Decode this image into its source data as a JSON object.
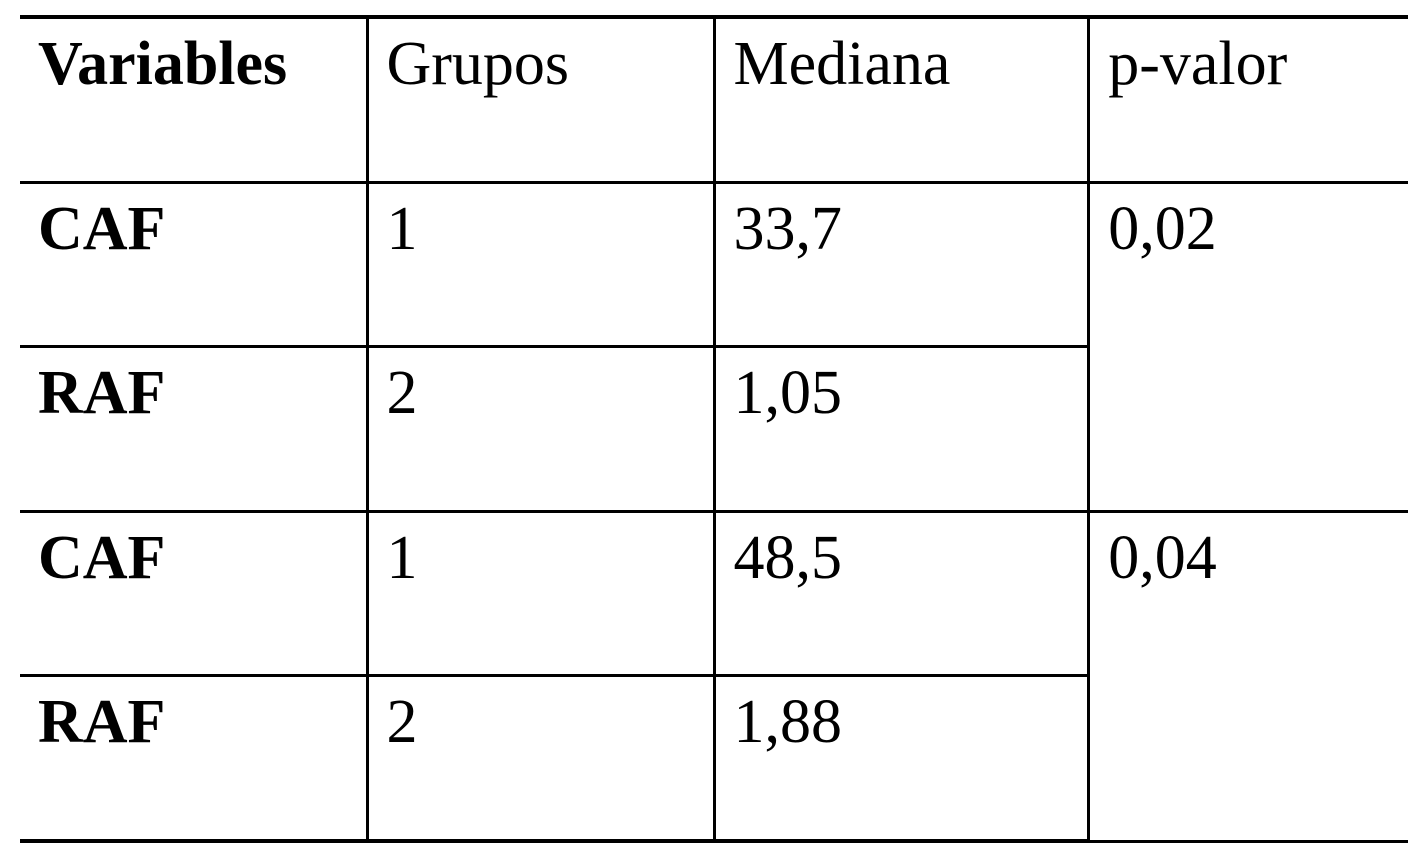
{
  "table": {
    "headers": {
      "variables": "Variables",
      "grupos": "Grupos",
      "mediana": "Mediana",
      "pvalor": "p-valor"
    },
    "rows": [
      {
        "variable": "CAF",
        "grupo": "1",
        "mediana": "33,7",
        "pvalor": "0,02"
      },
      {
        "variable": "RAF",
        "grupo": "2",
        "mediana": "1,05"
      },
      {
        "variable": "CAF",
        "grupo": "1",
        "mediana": "48,5",
        "pvalor": "0,04"
      },
      {
        "variable": "RAF",
        "grupo": "2",
        "mediana": "1,88"
      }
    ],
    "styling": {
      "font_family": "Times New Roman",
      "header_bold_columns": [
        0
      ],
      "variable_bold": true,
      "border_color": "#000000",
      "border_width_outer": 4,
      "border_width_inner": 3,
      "background_color": "#ffffff",
      "text_color": "#000000",
      "font_size": 62,
      "pvalor_rowspan": 2
    }
  }
}
